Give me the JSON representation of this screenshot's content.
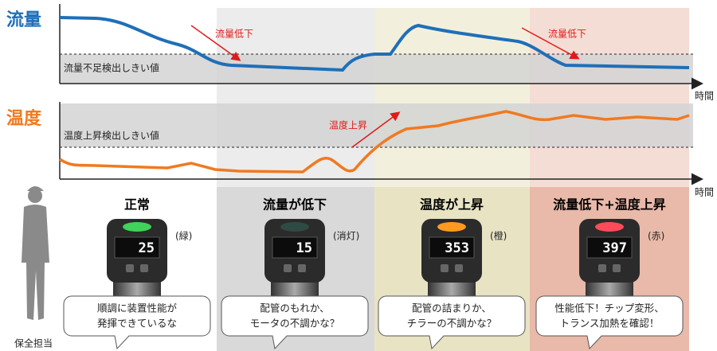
{
  "flow": {
    "label": "流量",
    "threshold_label": "流量不足検出しきい値",
    "drop_labels": [
      "流量低下",
      "流量低下"
    ],
    "time_label": "時間"
  },
  "temperature": {
    "label": "温度",
    "threshold_label": "温度上昇検出しきい値",
    "rise_label": "温度上昇",
    "time_label": "時間"
  },
  "states": [
    {
      "title": "正常",
      "color_label": "(緑)",
      "display": "25",
      "speech": [
        "順調に装置性能が",
        "発揮できているな"
      ]
    },
    {
      "title": "流量が低下",
      "color_label": "(消灯)",
      "display": "15",
      "speech": [
        "配管のもれか、",
        "モータの不調かな？"
      ]
    },
    {
      "title": "温度が上昇",
      "color_label": "(橙)",
      "display": "353",
      "speech": [
        "配管の詰まりか、",
        "チラーの不調かな？"
      ]
    },
    {
      "title": "流量低下+温度上昇",
      "color_label": "(赤)",
      "display": "397",
      "speech": [
        "性能低下！チップ変形、",
        "トランス加熱を確認！"
      ]
    }
  ],
  "worker": "保全担当"
}
